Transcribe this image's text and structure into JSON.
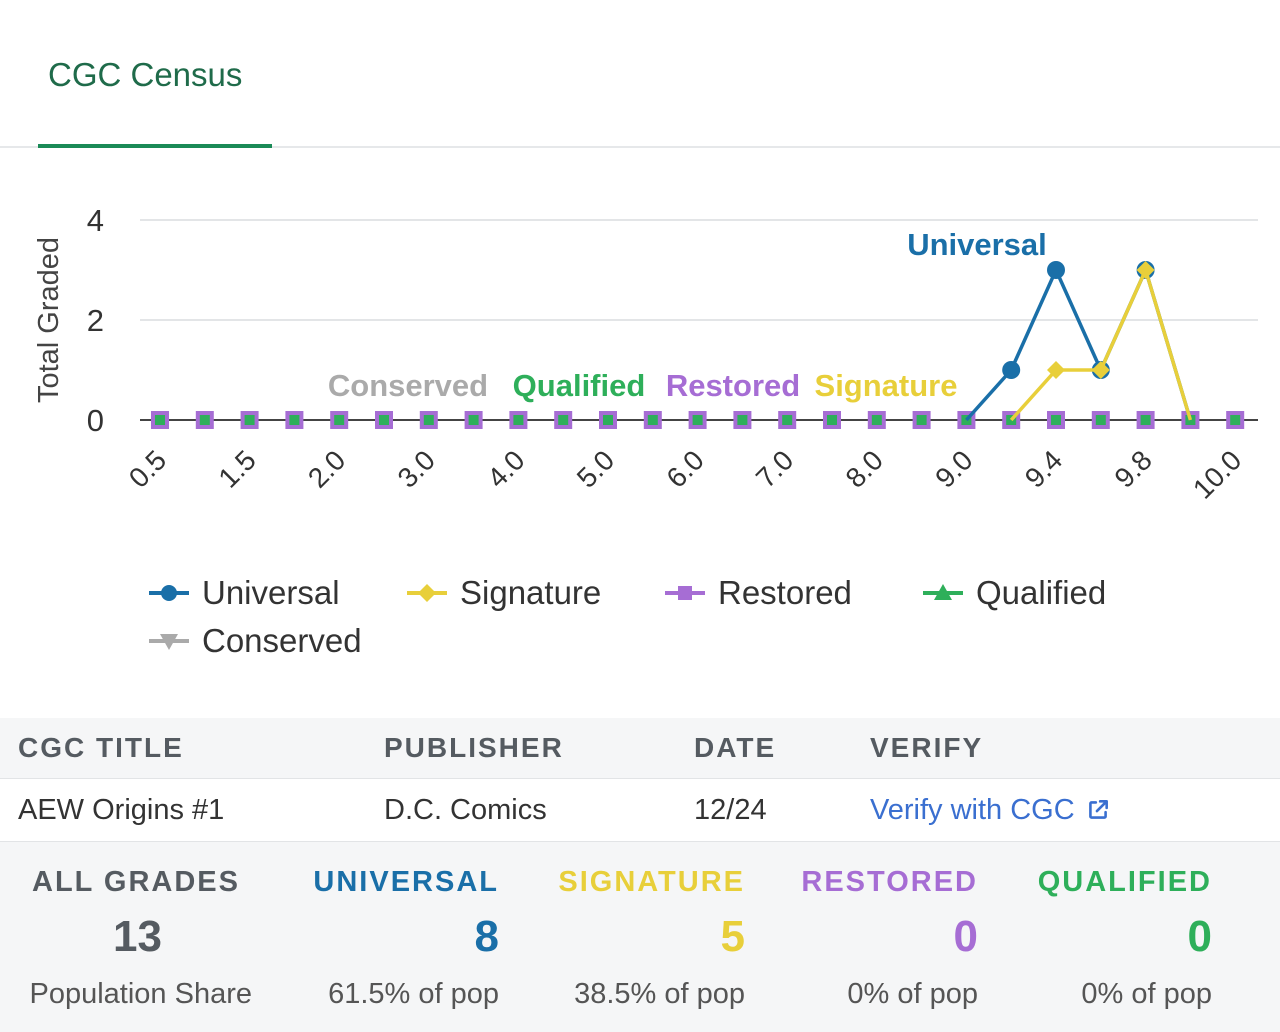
{
  "tab": {
    "label": "CGC Census"
  },
  "colors": {
    "universal": "#1a6fa8",
    "signature": "#e8cf3a",
    "restored": "#a66dd4",
    "qualified": "#2eaf5a",
    "conserved": "#aaaaaa",
    "accent": "#1a8a57"
  },
  "chart_data": {
    "type": "line",
    "ylabel": "Total Graded",
    "ylim": [
      0,
      4
    ],
    "y_ticks": [
      "0",
      "2",
      "4"
    ],
    "x": [
      "0.5",
      "1.0",
      "1.5",
      "1.8",
      "2.0",
      "2.5",
      "3.0",
      "3.5",
      "4.0",
      "4.5",
      "5.0",
      "5.5",
      "6.0",
      "6.5",
      "7.0",
      "7.5",
      "8.0",
      "8.5",
      "9.0",
      "9.2",
      "9.4",
      "9.6",
      "9.8",
      "9.9",
      "10.0"
    ],
    "x_tick_labels": [
      "0.5",
      "1.5",
      "2.0",
      "3.0",
      "4.0",
      "5.0",
      "6.0",
      "7.0",
      "8.0",
      "9.0",
      "9.4",
      "9.8",
      "10.0"
    ],
    "x_tick_indices": [
      0,
      2,
      4,
      6,
      8,
      10,
      12,
      14,
      16,
      18,
      20,
      22,
      24
    ],
    "series": [
      {
        "name": "Universal",
        "marker": "circle",
        "values": [
          0,
          0,
          0,
          0,
          0,
          0,
          0,
          0,
          0,
          0,
          0,
          0,
          0,
          0,
          0,
          0,
          0,
          0,
          0,
          1,
          3,
          1,
          3,
          0,
          0
        ]
      },
      {
        "name": "Signature",
        "marker": "diamond",
        "values": [
          0,
          0,
          0,
          0,
          0,
          0,
          0,
          0,
          0,
          0,
          0,
          0,
          0,
          0,
          0,
          0,
          0,
          0,
          0,
          0,
          1,
          1,
          3,
          0,
          0
        ]
      },
      {
        "name": "Restored",
        "marker": "square",
        "values": [
          0,
          0,
          0,
          0,
          0,
          0,
          0,
          0,
          0,
          0,
          0,
          0,
          0,
          0,
          0,
          0,
          0,
          0,
          0,
          0,
          0,
          0,
          0,
          0,
          0
        ]
      },
      {
        "name": "Qualified",
        "marker": "triangle",
        "values": [
          0,
          0,
          0,
          0,
          0,
          0,
          0,
          0,
          0,
          0,
          0,
          0,
          0,
          0,
          0,
          0,
          0,
          0,
          0,
          0,
          0,
          0,
          0,
          0,
          0
        ]
      },
      {
        "name": "Conserved",
        "marker": "triangle-down",
        "values": [
          0,
          0,
          0,
          0,
          0,
          0,
          0,
          0,
          0,
          0,
          0,
          0,
          0,
          0,
          0,
          0,
          0,
          0,
          0,
          0,
          0,
          0,
          0,
          0,
          0
        ]
      }
    ],
    "annotations": [
      "Conserved",
      "Qualified",
      "Restored",
      "Signature",
      "Universal"
    ],
    "legend": {
      "placement": "bottom",
      "items": [
        "Universal",
        "Signature",
        "Restored",
        "Qualified",
        "Conserved"
      ]
    },
    "grid": true
  },
  "table": {
    "headers": [
      "CGC TITLE",
      "PUBLISHER",
      "DATE",
      "VERIFY"
    ],
    "row": {
      "title": "AEW Origins #1",
      "publisher": "D.C. Comics",
      "date": "12/24",
      "verify": "Verify with CGC"
    }
  },
  "stats": [
    {
      "label": "ALL GRADES",
      "value": "13",
      "sub": "Population Share"
    },
    {
      "label": "UNIVERSAL",
      "value": "8",
      "sub": "61.5% of pop"
    },
    {
      "label": "SIGNATURE",
      "value": "5",
      "sub": "38.5% of pop"
    },
    {
      "label": "RESTORED",
      "value": "0",
      "sub": "0% of pop"
    },
    {
      "label": "QUALIFIED",
      "value": "0",
      "sub": "0% of pop"
    }
  ]
}
